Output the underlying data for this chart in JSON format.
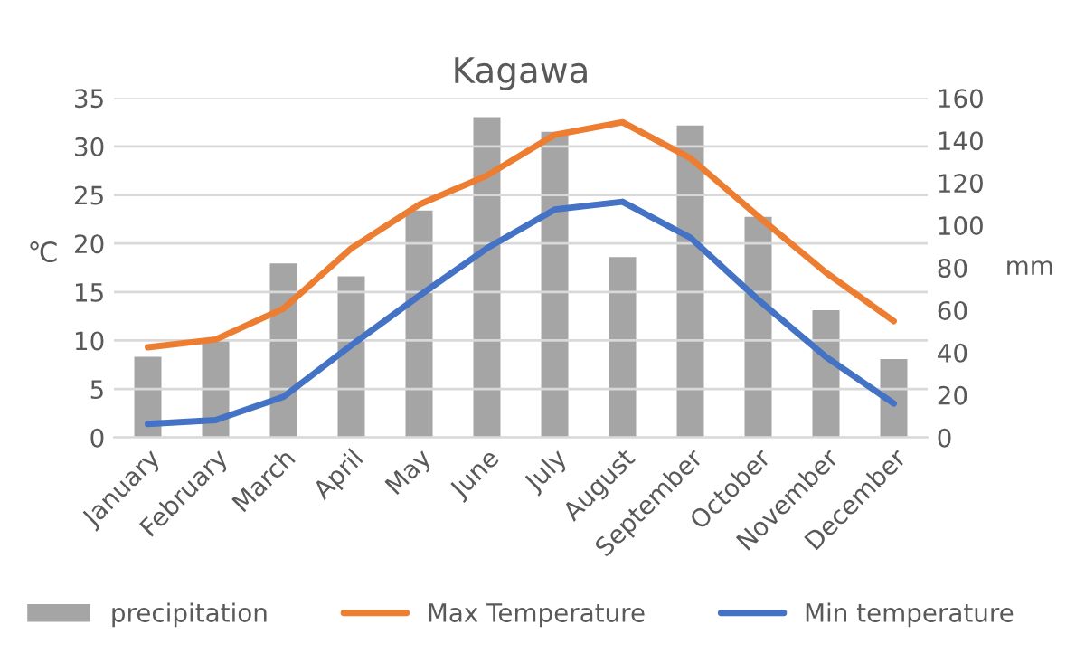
{
  "chart_data": {
    "type": "bar",
    "title": "Kagawa",
    "ylabel": "℃",
    "y2label": "mm",
    "categories": [
      "January",
      "February",
      "March",
      "April",
      "May",
      "June",
      "July",
      "August",
      "September",
      "October",
      "November",
      "December"
    ],
    "series": [
      {
        "name": "precipitation",
        "axis": "y2",
        "color": "#a5a5a5",
        "values": [
          38,
          46,
          82,
          76,
          107,
          151,
          144,
          85,
          147,
          104,
          60,
          37
        ]
      },
      {
        "name": "Max Temperature",
        "type": "line",
        "color": "#ed7d31",
        "values": [
          9.3,
          10.1,
          13.3,
          19.5,
          24.0,
          27.0,
          31.2,
          32.5,
          28.8,
          22.8,
          17.0,
          12.0
        ]
      },
      {
        "name": "Min temperature",
        "type": "line",
        "color": "#4472c4",
        "values": [
          1.4,
          1.8,
          4.2,
          9.5,
          14.6,
          19.5,
          23.5,
          24.3,
          20.6,
          14.2,
          8.3,
          3.5
        ]
      }
    ],
    "ylim": [
      0,
      35
    ],
    "yticks": [
      0,
      5,
      10,
      15,
      20,
      25,
      30,
      35
    ],
    "y2lim": [
      0,
      160
    ],
    "y2ticks": [
      0,
      20,
      40,
      60,
      80,
      100,
      120,
      140,
      160
    ],
    "grid": "y",
    "legend": "bottom",
    "marker": "none",
    "line_style": "solid"
  }
}
